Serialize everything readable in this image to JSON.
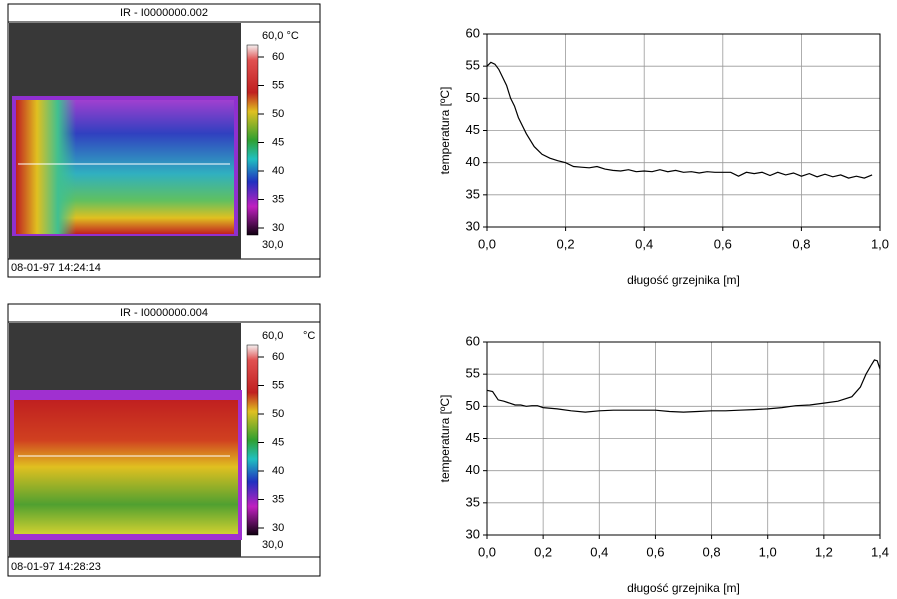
{
  "chart_data": [
    {
      "type": "line",
      "ylabel": "temperatura [ºC]",
      "xlabel": "długość grzejnika [m]",
      "color": "#000000",
      "grid": true,
      "x": [
        0,
        0.01,
        0.02,
        0.03,
        0.05,
        0.06,
        0.07,
        0.08,
        0.1,
        0.12,
        0.14,
        0.16,
        0.18,
        0.2,
        0.22,
        0.24,
        0.26,
        0.28,
        0.3,
        0.32,
        0.34,
        0.36,
        0.38,
        0.4,
        0.42,
        0.44,
        0.46,
        0.48,
        0.5,
        0.52,
        0.54,
        0.56,
        0.58,
        0.6,
        0.62,
        0.64,
        0.66,
        0.68,
        0.7,
        0.72,
        0.74,
        0.76,
        0.78,
        0.8,
        0.82,
        0.84,
        0.86,
        0.88,
        0.9,
        0.92,
        0.94,
        0.96,
        0.98
      ],
      "values": [
        55,
        55.6,
        55.3,
        54.5,
        52,
        50,
        48.8,
        47,
        44.5,
        42.5,
        41.3,
        40.7,
        40.3,
        40,
        39.4,
        39.3,
        39.2,
        39.4,
        39,
        38.8,
        38.7,
        38.9,
        38.6,
        38.7,
        38.6,
        38.9,
        38.6,
        38.8,
        38.5,
        38.6,
        38.4,
        38.6,
        38.5,
        38.5,
        38.5,
        37.9,
        38.5,
        38.3,
        38.5,
        38,
        38.5,
        38.1,
        38.4,
        37.9,
        38.3,
        37.8,
        38.2,
        37.8,
        38.1,
        37.6,
        37.9,
        37.6,
        38.1
      ],
      "xlim": [
        0,
        1
      ],
      "ylim": [
        30,
        60
      ],
      "xticks": [
        {
          "value": 0,
          "label": "0,0"
        },
        {
          "value": 0.2,
          "label": "0,2"
        },
        {
          "value": 0.4,
          "label": "0,4"
        },
        {
          "value": 0.6,
          "label": "0,6"
        },
        {
          "value": 0.8,
          "label": "0,8"
        },
        {
          "value": 1,
          "label": "1,0"
        }
      ],
      "yticks": [
        30,
        35,
        40,
        45,
        50,
        55,
        60
      ]
    },
    {
      "type": "line",
      "ylabel": "temperatura [ºC]",
      "xlabel": "długość grzejnika [m]",
      "color": "#000000",
      "grid": true,
      "x": [
        0,
        0.02,
        0.04,
        0.06,
        0.08,
        0.1,
        0.12,
        0.14,
        0.16,
        0.18,
        0.2,
        0.25,
        0.3,
        0.35,
        0.4,
        0.45,
        0.5,
        0.55,
        0.6,
        0.65,
        0.7,
        0.75,
        0.8,
        0.85,
        0.9,
        0.95,
        1,
        1.05,
        1.1,
        1.15,
        1.2,
        1.25,
        1.3,
        1.33,
        1.35,
        1.37,
        1.38,
        1.39,
        1.4
      ],
      "values": [
        52.5,
        52.3,
        51,
        50.8,
        50.5,
        50.2,
        50.2,
        50,
        50.1,
        50.1,
        49.8,
        49.6,
        49.3,
        49.1,
        49.3,
        49.4,
        49.4,
        49.4,
        49.4,
        49.2,
        49.1,
        49.2,
        49.3,
        49.3,
        49.4,
        49.5,
        49.6,
        49.8,
        50.1,
        50.2,
        50.5,
        50.8,
        51.5,
        53,
        55,
        56.5,
        57.2,
        57.1,
        55.8
      ],
      "xlim": [
        0,
        1.4
      ],
      "ylim": [
        30,
        60
      ],
      "xticks": [
        {
          "value": 0,
          "label": "0,0"
        },
        {
          "value": 0.2,
          "label": "0,2"
        },
        {
          "value": 0.4,
          "label": "0,4"
        },
        {
          "value": 0.6,
          "label": "0,6"
        },
        {
          "value": 0.8,
          "label": "0,8"
        },
        {
          "value": 1,
          "label": "1,0"
        },
        {
          "value": 1.2,
          "label": "1,2"
        },
        {
          "value": 1.4,
          "label": "1,4"
        }
      ],
      "yticks": [
        30,
        35,
        40,
        45,
        50,
        55,
        60
      ]
    }
  ],
  "thermograms": [
    {
      "title": "IR - I0000000.002",
      "scale_max": "60,0 °C",
      "scale_ticks": [
        60,
        55,
        50,
        45,
        40,
        35,
        30
      ],
      "scale_min": "30,0",
      "timestamp": "08-01-97 14:24:14"
    },
    {
      "title": "IR - I0000000.004",
      "scale_max": "60,0",
      "unit": "°C",
      "scale_ticks": [
        60,
        55,
        50,
        45,
        40,
        35,
        30
      ],
      "scale_min": "30,0",
      "timestamp": "08-01-97 14:28:23"
    }
  ]
}
